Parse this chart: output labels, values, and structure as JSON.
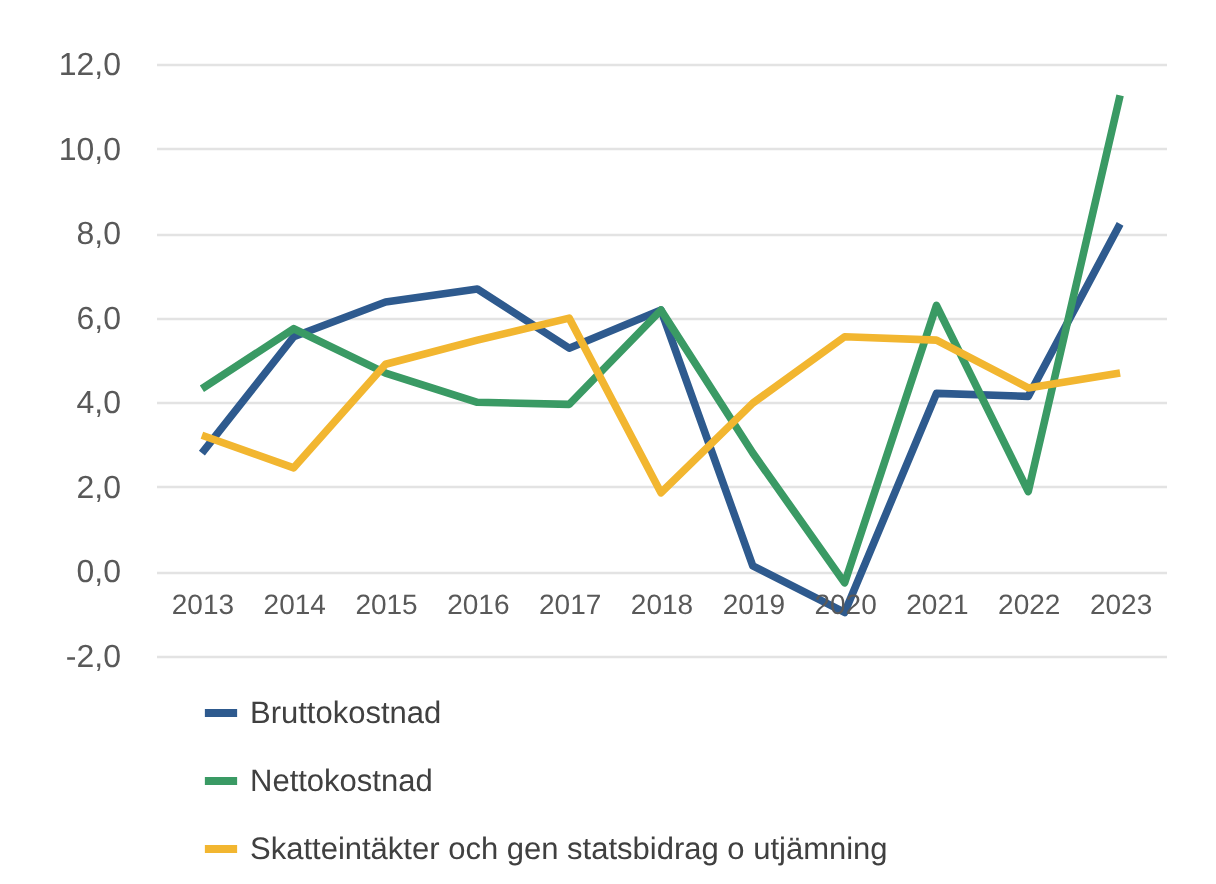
{
  "chart_data": {
    "type": "line",
    "categories": [
      "2013",
      "2014",
      "2015",
      "2016",
      "2017",
      "2018",
      "2019",
      "2020",
      "2021",
      "2022",
      "2023"
    ],
    "series": [
      {
        "name": "Bruttokostnad",
        "color": "#2e5a8e",
        "values": [
          2.8,
          5.55,
          6.37,
          6.68,
          5.28,
          6.18,
          0.13,
          -0.97,
          4.21,
          4.14,
          8.22
        ]
      },
      {
        "name": "Nettokostnad",
        "color": "#3a9a64",
        "values": [
          4.32,
          5.74,
          4.69,
          4.0,
          3.95,
          6.18,
          2.8,
          -0.27,
          6.29,
          1.89,
          11.26
        ]
      },
      {
        "name": "Skatteintäkter och gen statsbidrag o utjämning",
        "color": "#f2b630",
        "values": [
          3.22,
          2.45,
          4.9,
          5.47,
          5.99,
          1.86,
          3.98,
          5.55,
          5.47,
          4.34,
          4.69
        ]
      }
    ],
    "ylim": [
      -2,
      12
    ],
    "yticks": [
      {
        "value": -2,
        "label": "-2,0"
      },
      {
        "value": 0,
        "label": "0,0"
      },
      {
        "value": 2,
        "label": "2,0"
      },
      {
        "value": 4,
        "label": "4,0"
      },
      {
        "value": 6,
        "label": "6,0"
      },
      {
        "value": 8,
        "label": "8,0"
      },
      {
        "value": 10,
        "label": "10,0"
      },
      {
        "value": 12,
        "label": "12,0"
      }
    ],
    "grid": "y",
    "legend": "bottom",
    "marker": "none",
    "line_style": "solid"
  }
}
